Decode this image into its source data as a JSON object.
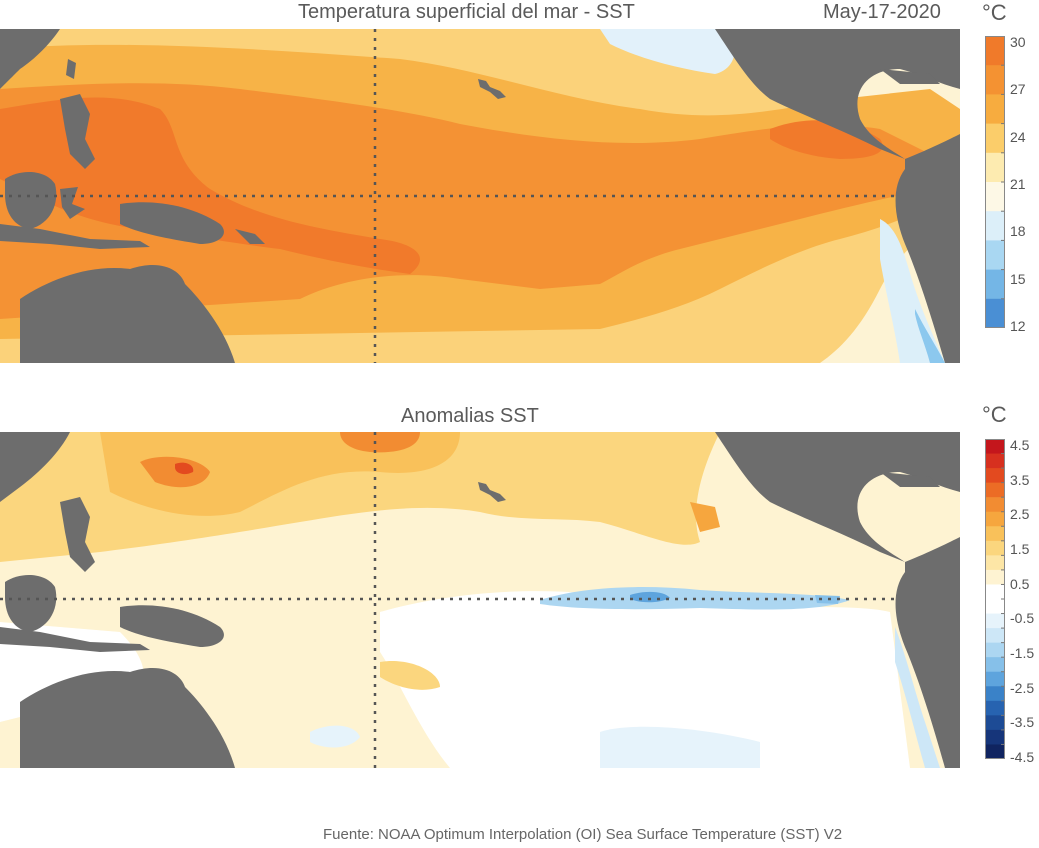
{
  "top_panel": {
    "title": "Temperatura superficial del mar - SST",
    "date": "May-17-2020",
    "unit": "°C",
    "colorbar": {
      "ticks": [
        "30",
        "27",
        "24",
        "21",
        "18",
        "15",
        "12"
      ],
      "colors": [
        "#f07a2a",
        "#f49232",
        "#f7ac3f",
        "#fbcd6a",
        "#fdebb0",
        "#fdf8e6",
        "#dceff9",
        "#a9d7f2",
        "#74b6e6",
        "#4a8fd4"
      ]
    }
  },
  "bottom_panel": {
    "title": "Anomalias SST",
    "unit": "°C",
    "colorbar": {
      "ticks": [
        "4.5",
        "3.5",
        "2.5",
        "1.5",
        "0.5",
        "-0.5",
        "-1.5",
        "-2.5",
        "-3.5",
        "-4.5"
      ],
      "colors": [
        "#c4161c",
        "#d7301f",
        "#e34a1f",
        "#ec6c25",
        "#f28c32",
        "#f6a63e",
        "#f9c15a",
        "#fbd67e",
        "#fde6a6",
        "#fef3d2",
        "#ffffff",
        "#ffffff",
        "#e6f3fb",
        "#cde7f7",
        "#acd6f1",
        "#86c0e9",
        "#5ea4dd",
        "#3a82c8",
        "#2763b0",
        "#1d4b95",
        "#16357a",
        "#102460"
      ]
    }
  },
  "colors": {
    "land": "#6d6d6d",
    "grid_line": "#555555"
  },
  "footer": "Fuente: NOAA Optimum Interpolation (OI) Sea Surface Temperature (SST) V2"
}
